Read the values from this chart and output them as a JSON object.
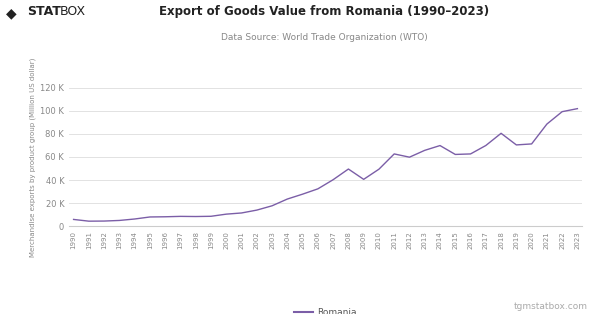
{
  "title": "Export of Goods Value from Romania (1990–2023)",
  "subtitle": "Data Source: World Trade Organization (WTO)",
  "ylabel": "Merchandise exports by product group (Million US dollar)",
  "legend_label": "Romania",
  "watermark": "tgmstatbox.com",
  "line_color": "#7B5EA7",
  "background_color": "#ffffff",
  "grid_color": "#dddddd",
  "ylim": [
    0,
    120000
  ],
  "yticks": [
    0,
    20000,
    40000,
    60000,
    80000,
    100000,
    120000
  ],
  "ytick_labels": [
    "0",
    "20 K",
    "40 K",
    "60 K",
    "80 K",
    "100 K",
    "120 K"
  ],
  "years": [
    1990,
    1991,
    1992,
    1993,
    1994,
    1995,
    1996,
    1997,
    1998,
    1999,
    2000,
    2001,
    2002,
    2003,
    2004,
    2005,
    2006,
    2007,
    2008,
    2009,
    2010,
    2011,
    2012,
    2013,
    2014,
    2015,
    2016,
    2017,
    2018,
    2019,
    2020,
    2021,
    2022,
    2023
  ],
  "values": [
    5770,
    4266,
    4363,
    4892,
    6151,
    7910,
    8084,
    8431,
    8302,
    8504,
    10367,
    11385,
    13876,
    17618,
    23485,
    27730,
    32338,
    40280,
    49548,
    40590,
    49413,
    62672,
    59847,
    65783,
    69939,
    62226,
    62664,
    69979,
    80583,
    70497,
    71360,
    88596,
    99380,
    102000
  ]
}
